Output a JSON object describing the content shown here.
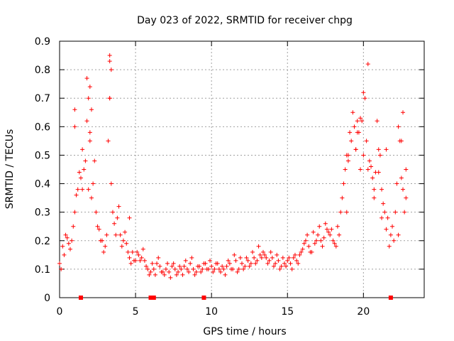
{
  "chart_data": {
    "type": "scatter",
    "title": "Day 023 of 2022, SRMTID for receiver chpg",
    "xlabel": "GPS time / hours",
    "ylabel": "SRMTID / TECUs",
    "xlim": [
      0,
      24
    ],
    "ylim": [
      0,
      0.9
    ],
    "x_ticks": [
      0,
      5,
      10,
      15,
      20
    ],
    "y_ticks": [
      0,
      0.1,
      0.2,
      0.3,
      0.4,
      0.5,
      0.6,
      0.7,
      0.8,
      0.9
    ],
    "grid": true,
    "marker": "plus",
    "series_color": "#ff0000",
    "series": [
      {
        "name": "SRMTID",
        "x": [
          0.0,
          0.2,
          0.4,
          0.6,
          0.8,
          1.0,
          1.2,
          1.4,
          1.6,
          1.8,
          2.0,
          2.2,
          2.4,
          2.6,
          2.8,
          3.0,
          3.2,
          3.4,
          3.6,
          3.8,
          4.0,
          4.2,
          4.4,
          4.6,
          4.8,
          5.0,
          5.2,
          5.4,
          5.6,
          5.8,
          6.0,
          6.2,
          6.4,
          6.6,
          6.8,
          7.0,
          7.2,
          7.4,
          7.6,
          7.8,
          8.0,
          8.2,
          8.4,
          8.6,
          8.8,
          9.0,
          9.2,
          9.4,
          9.6,
          9.8,
          10.0,
          10.2,
          10.4,
          10.6,
          10.8,
          11.0,
          11.2,
          11.4,
          11.6,
          11.8,
          12.0,
          12.2,
          12.4,
          12.6,
          12.8,
          13.0,
          13.2,
          13.4,
          13.6,
          13.8,
          14.0,
          14.2,
          14.4,
          14.6,
          14.8,
          15.0,
          15.2,
          15.4,
          15.6,
          15.8,
          16.0,
          16.2,
          16.4,
          16.6,
          16.8,
          17.0,
          17.2,
          17.4,
          17.6,
          17.8,
          18.0,
          18.2,
          18.4,
          18.6,
          18.8,
          19.0,
          19.2,
          19.4,
          19.6,
          19.8,
          20.0,
          20.2,
          20.4,
          20.6,
          20.8,
          21.0,
          21.2,
          21.4,
          21.6,
          21.8,
          22.0,
          22.2,
          22.4,
          22.6,
          22.8,
          0.1,
          0.3,
          0.5,
          0.7,
          0.9,
          1.1,
          1.3,
          1.5,
          1.7,
          1.9,
          2.1,
          2.3,
          2.5,
          2.7,
          2.9,
          3.1,
          3.3,
          3.5,
          3.7,
          3.9,
          4.1,
          4.3,
          4.5,
          4.7,
          4.9,
          5.1,
          5.3,
          5.5,
          5.7,
          5.9,
          6.1,
          6.3,
          6.5,
          6.7,
          6.9,
          7.1,
          7.3,
          7.5,
          7.7,
          7.9,
          8.1,
          8.3,
          8.5,
          8.7,
          8.9,
          9.1,
          9.3,
          9.5,
          9.7,
          9.9,
          10.1,
          10.3,
          10.5,
          10.7,
          10.9,
          11.1,
          11.3,
          11.5,
          11.7,
          11.9,
          12.1,
          12.3,
          12.5,
          12.7,
          12.9,
          13.1,
          13.3,
          13.5,
          13.7,
          13.9,
          14.1,
          14.3,
          14.5,
          14.7,
          14.9,
          15.1,
          15.3,
          15.5,
          15.7,
          15.9,
          16.1,
          16.3,
          16.5,
          16.7,
          16.9,
          17.1,
          17.3,
          17.5,
          17.7,
          17.9,
          18.1,
          18.3,
          18.5,
          18.7,
          18.9,
          19.1,
          19.3,
          19.5,
          19.7,
          19.9,
          20.1,
          20.3,
          20.5,
          20.7,
          20.9,
          21.1,
          21.3,
          21.5,
          21.7,
          21.9,
          22.1,
          22.3,
          22.5,
          22.7,
          1.0,
          1.0,
          1.5,
          1.8,
          2.0,
          2.0,
          3.3,
          3.3,
          3.4,
          1.9,
          2.1,
          3.3,
          4.6,
          19.8,
          20.0,
          20.3,
          19.5,
          19.6,
          20.7,
          21.2,
          22.5,
          22.6,
          18.9,
          19.0,
          21.0,
          21.5,
          22.3,
          22.8
        ],
        "y": [
          0.12,
          0.18,
          0.22,
          0.19,
          0.2,
          0.3,
          0.38,
          0.42,
          0.45,
          0.62,
          0.55,
          0.4,
          0.3,
          0.24,
          0.2,
          0.18,
          0.55,
          0.4,
          0.26,
          0.28,
          0.22,
          0.2,
          0.19,
          0.14,
          0.16,
          0.13,
          0.15,
          0.14,
          0.13,
          0.1,
          0.09,
          0.1,
          0.12,
          0.11,
          0.09,
          0.1,
          0.09,
          0.11,
          0.1,
          0.09,
          0.1,
          0.11,
          0.1,
          0.12,
          0.1,
          0.09,
          0.11,
          0.1,
          0.12,
          0.1,
          0.11,
          0.1,
          0.12,
          0.09,
          0.1,
          0.11,
          0.12,
          0.1,
          0.13,
          0.1,
          0.12,
          0.11,
          0.13,
          0.12,
          0.14,
          0.13,
          0.15,
          0.16,
          0.14,
          0.13,
          0.14,
          0.12,
          0.13,
          0.11,
          0.12,
          0.13,
          0.12,
          0.14,
          0.13,
          0.15,
          0.17,
          0.2,
          0.18,
          0.16,
          0.19,
          0.22,
          0.2,
          0.21,
          0.24,
          0.22,
          0.2,
          0.18,
          0.22,
          0.35,
          0.45,
          0.5,
          0.55,
          0.6,
          0.62,
          0.45,
          0.5,
          0.55,
          0.48,
          0.42,
          0.44,
          0.52,
          0.38,
          0.3,
          0.28,
          0.22,
          0.2,
          0.4,
          0.55,
          0.38,
          0.35,
          0.1,
          0.15,
          0.21,
          0.17,
          0.25,
          0.36,
          0.44,
          0.38,
          0.48,
          0.7,
          0.66,
          0.48,
          0.25,
          0.2,
          0.16,
          0.22,
          0.7,
          0.3,
          0.22,
          0.32,
          0.18,
          0.23,
          0.16,
          0.12,
          0.13,
          0.16,
          0.13,
          0.17,
          0.11,
          0.08,
          0.12,
          0.08,
          0.14,
          0.09,
          0.08,
          0.12,
          0.07,
          0.12,
          0.08,
          0.11,
          0.08,
          0.13,
          0.09,
          0.14,
          0.08,
          0.11,
          0.09,
          0.12,
          0.1,
          0.13,
          0.09,
          0.12,
          0.1,
          0.11,
          0.08,
          0.13,
          0.1,
          0.15,
          0.09,
          0.14,
          0.1,
          0.14,
          0.11,
          0.16,
          0.12,
          0.18,
          0.14,
          0.15,
          0.12,
          0.16,
          0.11,
          0.15,
          0.1,
          0.14,
          0.11,
          0.14,
          0.1,
          0.15,
          0.12,
          0.16,
          0.19,
          0.22,
          0.16,
          0.23,
          0.2,
          0.25,
          0.18,
          0.26,
          0.23,
          0.24,
          0.19,
          0.25,
          0.3,
          0.4,
          0.5,
          0.58,
          0.65,
          0.52,
          0.58,
          0.62,
          0.7,
          0.45,
          0.46,
          0.38,
          0.62,
          0.5,
          0.33,
          0.24,
          0.18,
          0.25,
          0.3,
          0.6,
          0.42,
          0.3,
          0.66,
          0.6,
          0.52,
          0.77,
          0.74,
          0.58,
          0.85,
          0.83,
          0.8,
          0.38,
          0.35,
          0.7,
          0.28,
          0.63,
          0.72,
          0.82,
          0.52,
          0.58,
          0.35,
          0.28,
          0.55,
          0.65,
          0.3,
          0.48,
          0.44,
          0.52,
          0.22,
          0.45
        ]
      }
    ],
    "flagged_x": [
      1.4,
      6.0,
      6.2,
      9.5,
      21.8
    ],
    "flagged_y": [
      0,
      0,
      0,
      0,
      0
    ]
  }
}
